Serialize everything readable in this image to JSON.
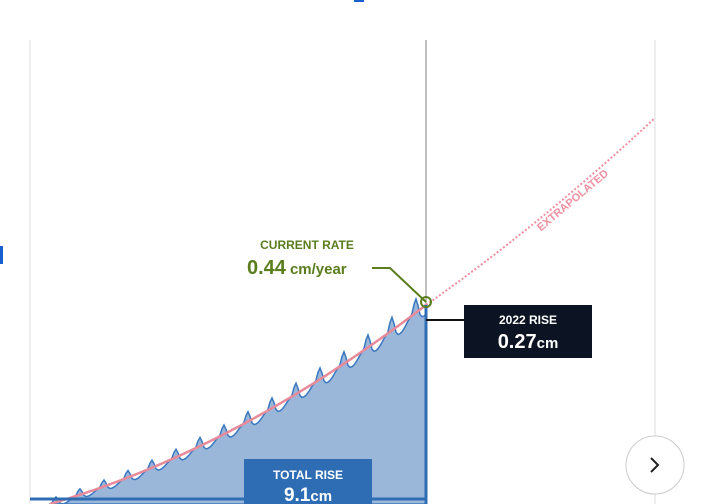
{
  "annotations": {
    "current_rate": {
      "label": "CURRENT RATE",
      "value": "0.44",
      "unit": "cm/year"
    },
    "extrapolated": "EXTRAPOLATED",
    "rise_2022": {
      "label": "2022 RISE",
      "value": "0.27",
      "unit": "cm"
    },
    "total_rise": {
      "label": "TOTAL RISE",
      "value": "9.1",
      "unit": "cm"
    }
  }
}
